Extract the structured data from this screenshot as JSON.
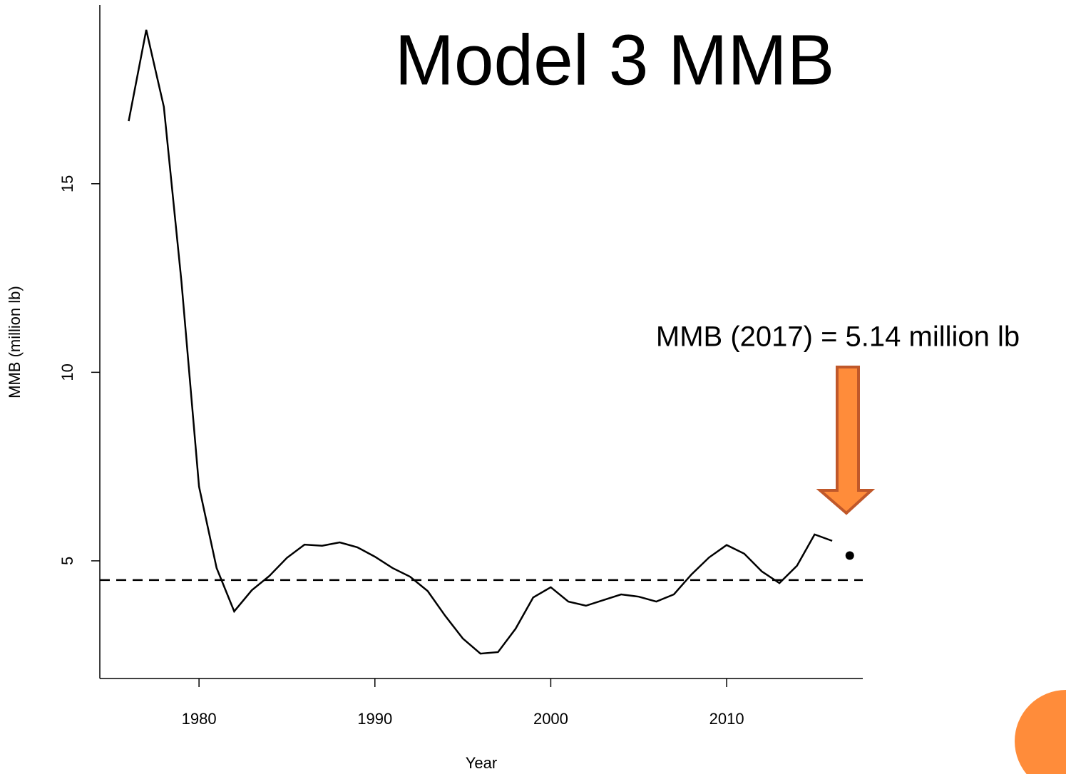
{
  "chart_data": {
    "type": "line",
    "title": "Model 3 MMB",
    "x_label": "Year",
    "y_label": "MMB (million lb)",
    "annotation": "MMB (2017) = 5.14 million lb",
    "x": [
      1976,
      1977,
      1978,
      1979,
      1980,
      1981,
      1982,
      1983,
      1984,
      1985,
      1986,
      1987,
      1988,
      1989,
      1990,
      1991,
      1992,
      1993,
      1994,
      1995,
      1996,
      1997,
      1998,
      1999,
      2000,
      2001,
      2002,
      2003,
      2004,
      2005,
      2006,
      2007,
      2008,
      2009,
      2010,
      2011,
      2012,
      2013,
      2014,
      2015,
      2016
    ],
    "series": [
      {
        "color": "#000000",
        "values": [
          16.66,
          19.08,
          17.04,
          12.41,
          6.97,
          4.81,
          3.66,
          4.22,
          4.6,
          5.08,
          5.43,
          5.4,
          5.49,
          5.36,
          5.11,
          4.81,
          4.58,
          4.2,
          3.54,
          2.94,
          2.54,
          2.58,
          3.2,
          4.03,
          4.3,
          3.92,
          3.81,
          3.96,
          4.11,
          4.05,
          3.92,
          4.11,
          4.64,
          5.09,
          5.42,
          5.19,
          4.72,
          4.41,
          4.87,
          5.7,
          5.53
        ]
      }
    ],
    "point": {
      "x": 2017,
      "y": 5.14,
      "color": "#000000"
    },
    "reference_line": {
      "y": 4.49,
      "dashed": true,
      "color": "#000000"
    },
    "arrow_color": "#ff8c3a",
    "xlim": [
      1974.36,
      2017.74
    ],
    "ylim": [
      1.88,
      19.74
    ],
    "xticks": [
      1980,
      1990,
      2000,
      2010
    ],
    "yticks": [
      5,
      10,
      15
    ]
  }
}
